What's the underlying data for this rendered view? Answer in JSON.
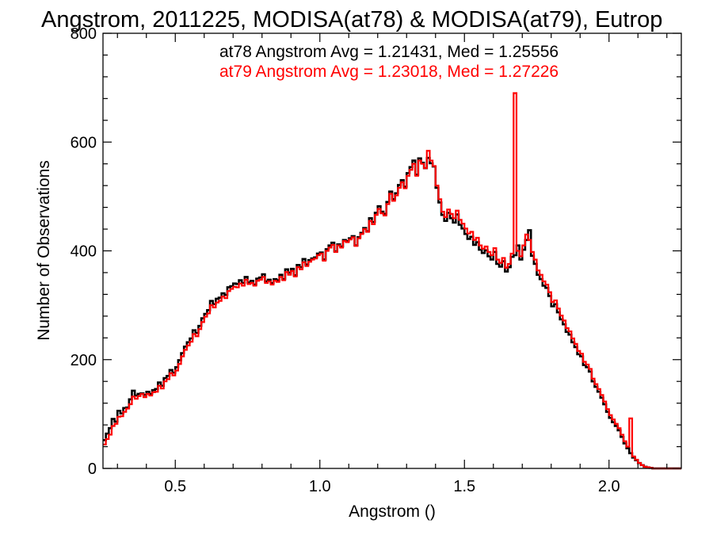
{
  "chart_data": {
    "type": "line",
    "step": true,
    "title": "Angstrom, 2011225, MODISA(at78) & MODISA(at79), Eutrop",
    "xlabel": "Angstrom ()",
    "ylabel": "Number of Observations",
    "xlim": [
      0.25,
      2.25
    ],
    "ylim": [
      0,
      800
    ],
    "xticks": [
      0.5,
      1.0,
      1.5,
      2.0
    ],
    "xtick_labels": [
      "0.5",
      "1.0",
      "1.5",
      "2.0"
    ],
    "yticks": [
      0,
      200,
      400,
      600,
      800
    ],
    "ytick_labels": [
      "0",
      "200",
      "400",
      "600",
      "800"
    ],
    "grid": false,
    "annotations": [
      {
        "text": "at78 Angstrom Avg = 1.21431, Med = 1.25556",
        "color": "#000000"
      },
      {
        "text": "at79 Angstrom Avg = 1.23018, Med = 1.27226",
        "color": "#ff0000"
      }
    ],
    "series": [
      {
        "label": "at78",
        "color": "#000000",
        "bin_width": 0.01,
        "x_start": 0.25,
        "values": [
          52,
          64,
          74,
          91,
          86,
          106,
          101,
          111,
          112,
          127,
          143,
          134,
          137,
          138,
          135,
          141,
          137,
          144,
          146,
          158,
          152,
          166,
          170,
          181,
          176,
          186,
          199,
          212,
          224,
          232,
          239,
          254,
          249,
          262,
          276,
          284,
          291,
          308,
          302,
          312,
          314,
          322,
          319,
          333,
          335,
          340,
          339,
          346,
          341,
          352,
          342,
          345,
          338,
          349,
          351,
          357,
          344,
          347,
          341,
          348,
          346,
          356,
          348,
          366,
          360,
          367,
          355,
          374,
          370,
          385,
          375,
          383,
          386,
          388,
          395,
          397,
          384,
          403,
          410,
          415,
          399,
          412,
          408,
          420,
          418,
          423,
          427,
          410,
          425,
          433,
          442,
          436,
          460,
          453,
          470,
          482,
          472,
          468,
          490,
          509,
          495,
          506,
          521,
          530,
          518,
          543,
          554,
          566,
          540,
          570,
          562,
          552,
          571,
          561,
          555,
          516,
          489,
          466,
          455,
          470,
          460,
          452,
          467,
          448,
          441,
          431,
          422,
          426,
          411,
          416,
          402,
          396,
          401,
          390,
          384,
          398,
          376,
          371,
          381,
          362,
          370,
          389,
          392,
          410,
          384,
          402,
          420,
          438,
          391,
          376,
          356,
          348,
          336,
          332,
          317,
          298,
          302,
          287,
          274,
          265,
          251,
          246,
          232,
          223,
          210,
          206,
          190,
          186,
          178,
          160,
          150,
          141,
          130,
          118,
          104,
          93,
          85,
          78,
          70,
          58,
          46,
          37,
          28,
          20,
          15,
          10,
          6,
          3,
          2,
          1,
          0,
          0,
          0,
          0,
          0,
          0,
          0,
          0,
          0,
          0
        ]
      },
      {
        "label": "at79",
        "color": "#ff0000",
        "bin_width": 0.01,
        "x_start": 0.25,
        "values": [
          44,
          54,
          62,
          78,
          82,
          95,
          96,
          104,
          110,
          118,
          132,
          128,
          133,
          137,
          131,
          137,
          134,
          140,
          141,
          152,
          147,
          160,
          164,
          175,
          171,
          180,
          192,
          206,
          218,
          226,
          233,
          247,
          243,
          256,
          269,
          279,
          285,
          300,
          296,
          305,
          308,
          316,
          313,
          326,
          330,
          334,
          333,
          340,
          336,
          347,
          339,
          341,
          336,
          345,
          347,
          352,
          341,
          344,
          338,
          345,
          343,
          352,
          346,
          361,
          356,
          363,
          353,
          370,
          366,
          379,
          372,
          380,
          384,
          386,
          392,
          395,
          382,
          400,
          406,
          411,
          398,
          410,
          406,
          418,
          416,
          421,
          425,
          409,
          423,
          431,
          440,
          435,
          455,
          449,
          466,
          477,
          469,
          465,
          486,
          505,
          492,
          502,
          516,
          526,
          515,
          538,
          549,
          560,
          538,
          566,
          560,
          552,
          584,
          566,
          556,
          520,
          495,
          472,
          462,
          476,
          468,
          460,
          474,
          457,
          450,
          441,
          432,
          435,
          420,
          424,
          410,
          404,
          408,
          398,
          392,
          405,
          384,
          378,
          387,
          369,
          376,
          395,
          690,
          400,
          390,
          410,
          430,
          420,
          398,
          384,
          364,
          356,
          344,
          338,
          324,
          306,
          309,
          294,
          281,
          272,
          258,
          252,
          239,
          229,
          216,
          211,
          196,
          191,
          183,
          165,
          155,
          146,
          135,
          123,
          109,
          98,
          90,
          82,
          74,
          62,
          50,
          40,
          92,
          22,
          16,
          10,
          6,
          3,
          2,
          1,
          0,
          0,
          0,
          0,
          0,
          0,
          0,
          0,
          0,
          0
        ]
      }
    ]
  }
}
